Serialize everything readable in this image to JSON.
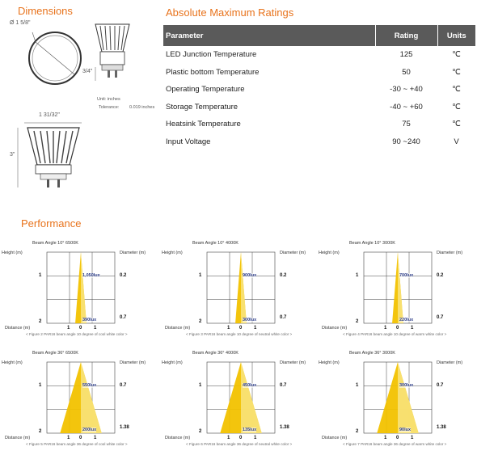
{
  "dimensions": {
    "title": "Dimensions",
    "diameter_label": "Ø 1 5/8\"",
    "pin_label": "3/4\"",
    "unit_label": "Unit: inches",
    "tolerance_label": "Tolerance:",
    "tolerance_value": "0.019 inches",
    "width_label": "1 31/32\"",
    "height_label": "3\""
  },
  "ratings": {
    "title": "Absolute Maximum Ratings",
    "headers": [
      "Parameter",
      "Rating",
      "Units"
    ],
    "rows": [
      {
        "parameter": "LED Junction Temperature",
        "rating": "125",
        "unit": "℃"
      },
      {
        "parameter": "Plastic bottom Temperature",
        "rating": "50",
        "unit": "℃"
      },
      {
        "parameter": "Operating Temperature",
        "rating": "-30 ~ +40",
        "unit": "℃"
      },
      {
        "parameter": "Storage Temperature",
        "rating": "-40 ~ +60",
        "unit": "℃"
      },
      {
        "parameter": "Heatsink Temperature",
        "rating": "75",
        "unit": "℃"
      },
      {
        "parameter": "Input Voltage",
        "rating": "90 ~240",
        "unit": "V"
      }
    ]
  },
  "performance": {
    "title": "Performance",
    "height_label": "Height (m)",
    "diameter_label": "Diameter (m)",
    "distance_label": "Distance (m)",
    "panels": [
      {
        "title": "Beam Angle 10° 6500K",
        "beam": 10,
        "lux": [
          "1,050lux",
          "390lux"
        ],
        "diam": [
          "0.2",
          "0.7"
        ],
        "caption": "< Figure 2 PAR16 beam angle 10 degree of cool white color >"
      },
      {
        "title": "Beam Angle 10° 4000K",
        "beam": 10,
        "lux": [
          "900lux",
          "300lux"
        ],
        "diam": [
          "0.2",
          "0.7"
        ],
        "caption": "< Figure 3 PAR16 beam angle 10 degree of neutral white color >"
      },
      {
        "title": "Beam Angle 10° 3000K",
        "beam": 10,
        "lux": [
          "700lux",
          "220lux"
        ],
        "diam": [
          "0.2",
          "0.7"
        ],
        "caption": "< Figure 4 PAR16 beam angle 10 degree of warm white color >"
      },
      {
        "title": "Beam Angle 36° 6500K",
        "beam": 36,
        "lux": [
          "550lux",
          "200lux"
        ],
        "diam": [
          "0.7",
          "1.38"
        ],
        "caption": "< Figure 5 PAR16 beam angle 36 degree of cool white color >"
      },
      {
        "title": "Beam Angle 36° 4000K",
        "beam": 36,
        "lux": [
          "450lux",
          "135lux"
        ],
        "diam": [
          "0.7",
          "1.38"
        ],
        "caption": "< Figure 6 PAR16 beam angle 36 degree of neutral white color >"
      },
      {
        "title": "Beam Angle 36° 3000K",
        "beam": 36,
        "lux": [
          "300lux",
          "90lux"
        ],
        "diam": [
          "0.7",
          "1.38"
        ],
        "caption": "< Figure 7 PAR16 beam angle 36 degree of warm white color >"
      }
    ],
    "height_ticks": [
      "1",
      "2"
    ],
    "distance_ticks": [
      "1",
      "0",
      "1"
    ],
    "beam_color": "#f2c200"
  }
}
